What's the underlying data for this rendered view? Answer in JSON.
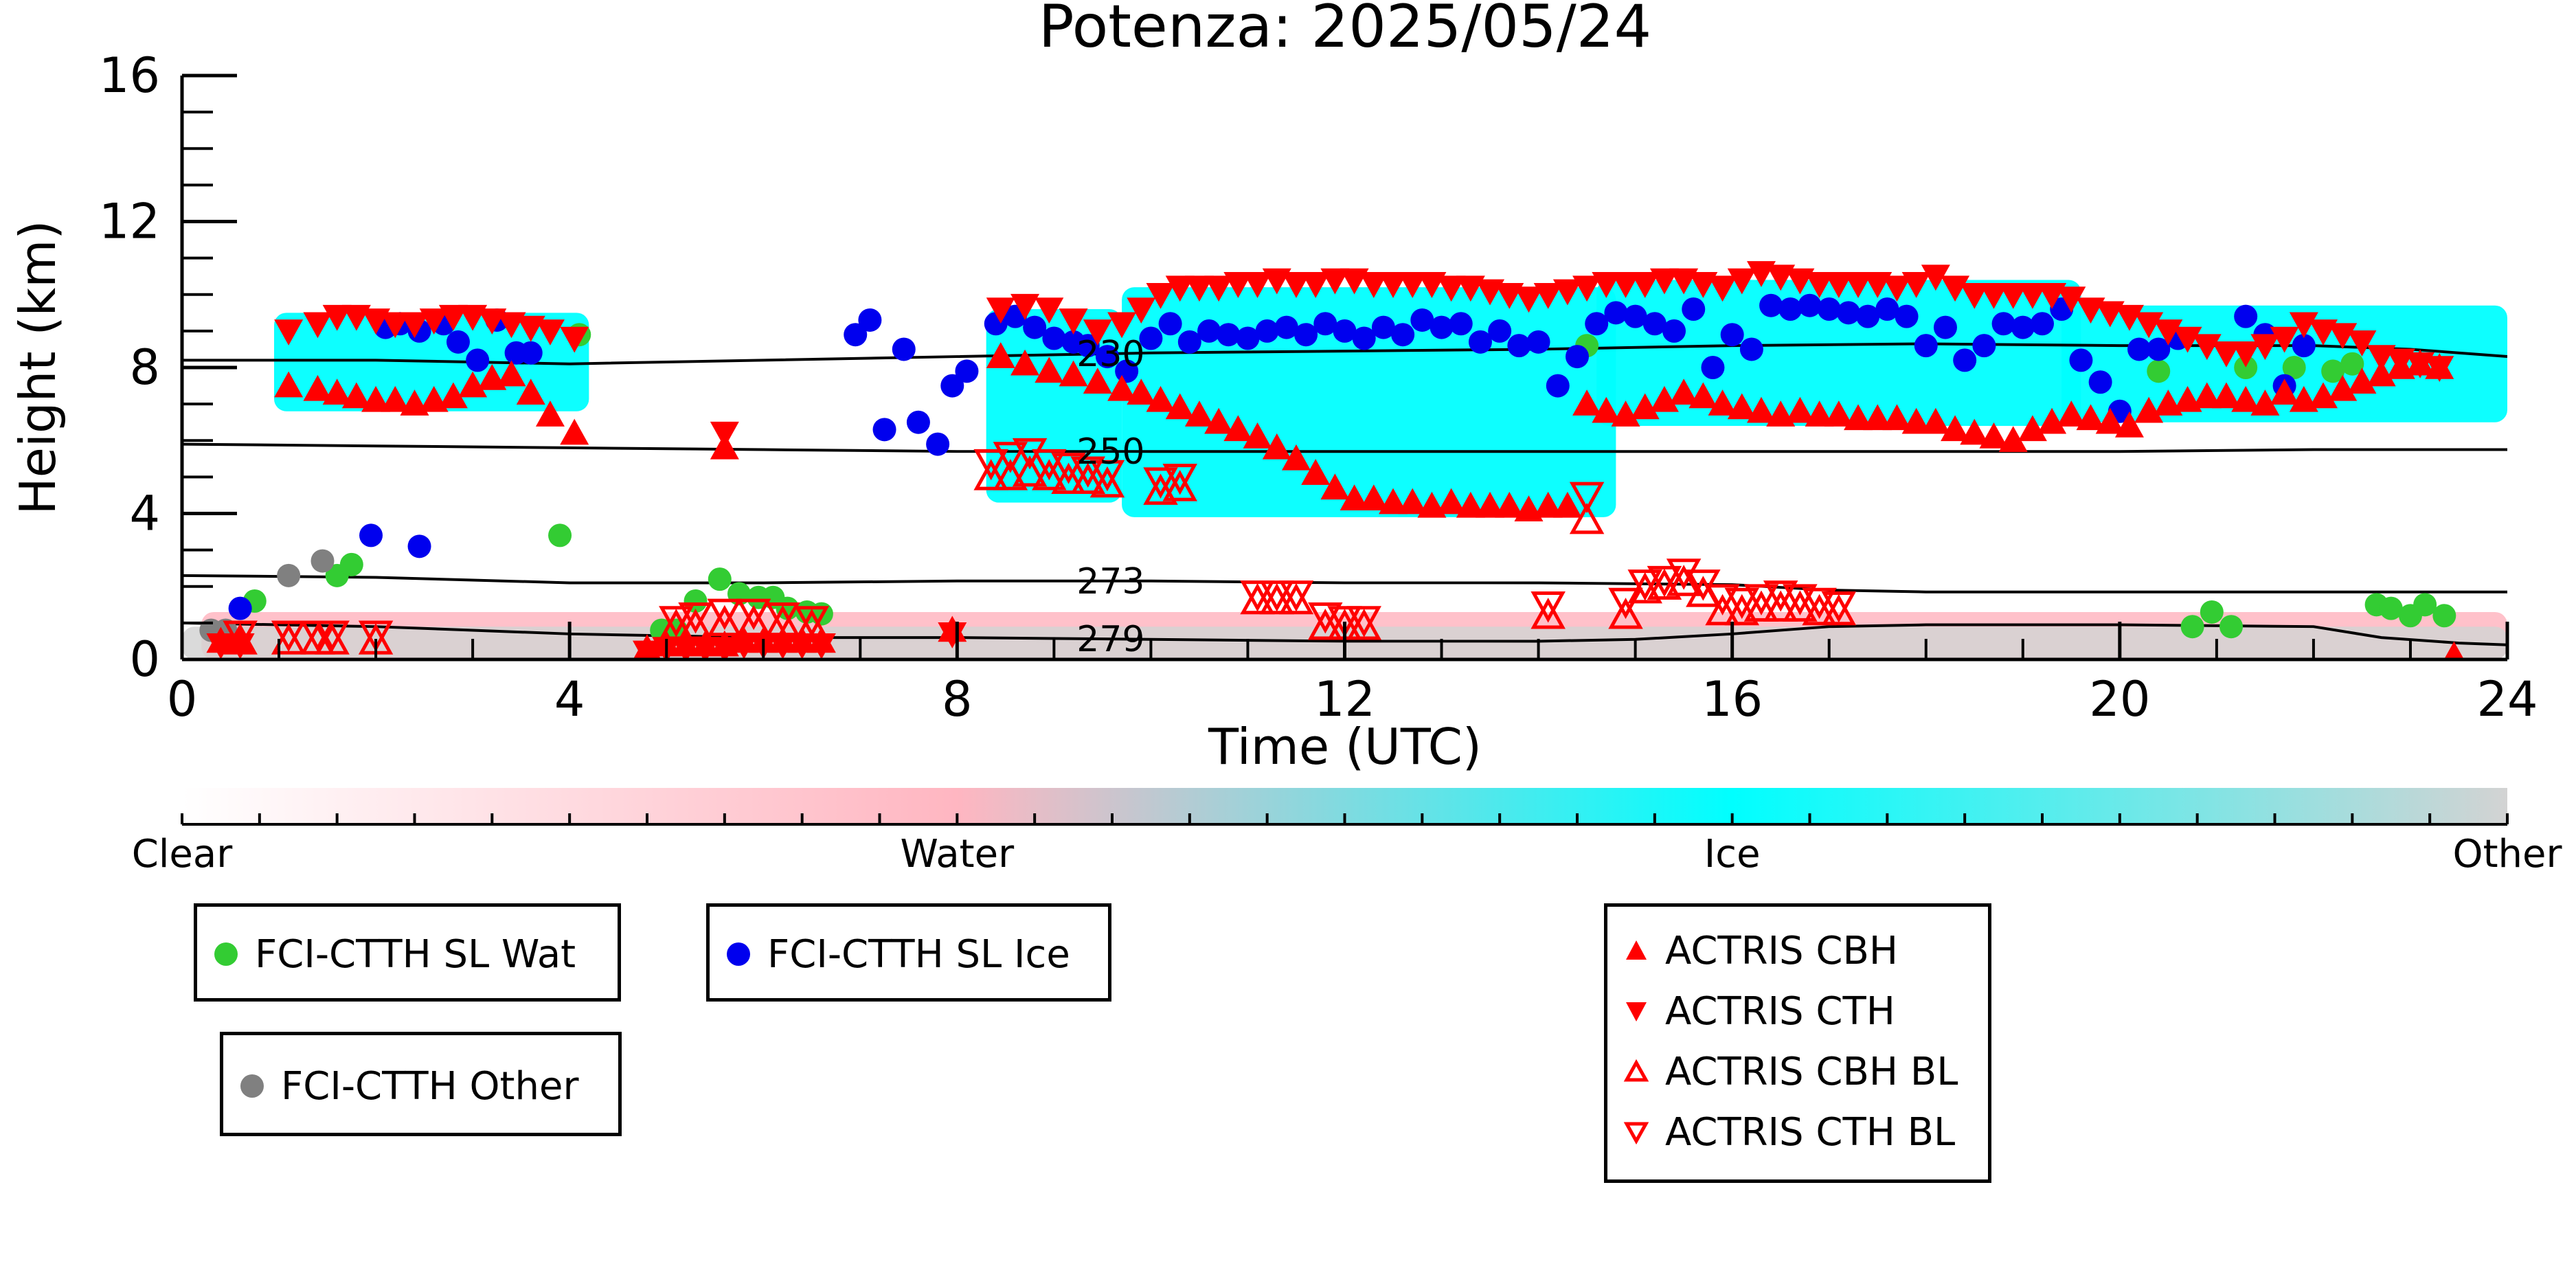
{
  "chart_data": {
    "type": "scatter",
    "title": "Potenza: 2025/05/24",
    "xlabel": "Time (UTC)",
    "ylabel": "Height (km)",
    "xlim": [
      0,
      24
    ],
    "ylim": [
      0,
      16
    ],
    "xticks": [
      0,
      4,
      8,
      12,
      16,
      20,
      24
    ],
    "yticks": [
      0,
      4,
      8,
      12,
      16
    ],
    "colorbar": {
      "labels": [
        "Clear",
        "Water",
        "Ice",
        "Other"
      ],
      "colors": [
        "#ffffff",
        "#ffb6c1",
        "#00ffff",
        "#d3d3d3"
      ]
    },
    "contours": [
      {
        "label": "230",
        "label_x": 9.5,
        "x": [
          0,
          2,
          4,
          6,
          8,
          10,
          12,
          14,
          16,
          18,
          20,
          22,
          23,
          24
        ],
        "y": [
          8.2,
          8.2,
          8.1,
          8.2,
          8.3,
          8.4,
          8.45,
          8.5,
          8.6,
          8.65,
          8.6,
          8.6,
          8.5,
          8.3
        ]
      },
      {
        "label": "250",
        "label_x": 9.5,
        "x": [
          0,
          2,
          4,
          6,
          8,
          10,
          12,
          14,
          16,
          18,
          20,
          22,
          24
        ],
        "y": [
          5.9,
          5.85,
          5.8,
          5.75,
          5.7,
          5.7,
          5.7,
          5.7,
          5.7,
          5.7,
          5.7,
          5.75,
          5.75
        ]
      },
      {
        "label": "273",
        "label_x": 9.5,
        "x": [
          0,
          2,
          4,
          6,
          8,
          10,
          12,
          14,
          16,
          17,
          18,
          20,
          22,
          24
        ],
        "y": [
          2.3,
          2.25,
          2.1,
          2.1,
          2.15,
          2.15,
          2.1,
          2.1,
          2.05,
          1.9,
          1.85,
          1.85,
          1.85,
          1.85
        ]
      },
      {
        "label": "279",
        "label_x": 9.5,
        "x": [
          0,
          2,
          4,
          5,
          6,
          8,
          10,
          12,
          14,
          15,
          16,
          17,
          18,
          20,
          22,
          22.7,
          23.5,
          24
        ],
        "y": [
          1.0,
          0.9,
          0.7,
          0.65,
          0.6,
          0.6,
          0.55,
          0.5,
          0.5,
          0.55,
          0.7,
          0.9,
          0.95,
          0.95,
          0.9,
          0.6,
          0.45,
          0.4
        ]
      }
    ],
    "cloud_phase_regions": [
      {
        "phase": "Ice",
        "x_range": [
          0.95,
          4.2
        ],
        "y_range": [
          6.8,
          9.5
        ]
      },
      {
        "phase": "Ice",
        "x_range": [
          8.3,
          9.7
        ],
        "y_range": [
          4.3,
          9.6
        ]
      },
      {
        "phase": "Ice",
        "x_range": [
          9.7,
          14.8
        ],
        "y_range": [
          3.9,
          10.2
        ]
      },
      {
        "phase": "Ice",
        "x_range": [
          14.6,
          19.6
        ],
        "y_range": [
          6.4,
          10.4
        ]
      },
      {
        "phase": "Ice",
        "x_range": [
          19.4,
          24.0
        ],
        "y_range": [
          6.5,
          9.7
        ]
      },
      {
        "phase": "Water",
        "x_range": [
          0.2,
          24.0
        ],
        "y_range": [
          0.0,
          1.3
        ]
      },
      {
        "phase": "Other",
        "x_range": [
          0.0,
          24.0
        ],
        "y_range": [
          0.0,
          0.9
        ]
      }
    ],
    "series": [
      {
        "name": "FCI-CTTH SL Wat",
        "marker": "circle",
        "color": "#33cc33",
        "x": [
          0.75,
          1.6,
          1.75,
          3.9,
          4.1,
          4.95,
          5.1,
          5.3,
          5.55,
          5.75,
          5.95,
          6.1,
          6.25,
          6.45,
          6.6,
          14.5,
          20.4,
          20.75,
          20.95,
          21.15,
          21.3,
          21.8,
          22.2,
          22.4,
          22.65,
          22.8,
          23.0,
          23.15,
          23.35
        ],
        "y": [
          1.6,
          2.3,
          2.6,
          3.4,
          8.9,
          0.8,
          0.8,
          1.6,
          2.2,
          1.8,
          1.7,
          1.7,
          1.4,
          1.3,
          1.25,
          8.6,
          7.9,
          0.9,
          1.3,
          0.9,
          8.0,
          8.0,
          7.9,
          8.1,
          1.5,
          1.4,
          1.2,
          1.5,
          1.2
        ]
      },
      {
        "name": "FCI-CTTH SL Ice",
        "marker": "circle",
        "color": "#0000ee",
        "x": [
          0.6,
          1.95,
          2.1,
          2.25,
          2.45,
          2.7,
          2.85,
          3.05,
          3.25,
          3.45,
          3.6,
          2.45,
          6.95,
          7.1,
          7.25,
          7.45,
          7.6,
          7.8,
          7.95,
          8.1,
          8.4,
          8.6,
          8.8,
          9.0,
          9.2,
          9.35,
          9.55,
          9.75,
          10.0,
          10.2,
          10.4,
          10.6,
          10.8,
          11.0,
          11.2,
          11.4,
          11.6,
          11.8,
          12.0,
          12.2,
          12.4,
          12.6,
          12.8,
          13.0,
          13.2,
          13.4,
          13.6,
          13.8,
          14.0,
          14.2,
          14.4,
          14.6,
          14.8,
          15.0,
          15.2,
          15.4,
          15.6,
          15.8,
          16.0,
          16.2,
          16.4,
          16.6,
          16.8,
          17.0,
          17.2,
          17.4,
          17.6,
          17.8,
          18.0,
          18.2,
          18.4,
          18.6,
          18.8,
          19.0,
          19.2,
          19.4,
          19.6,
          19.8,
          20.0,
          20.2,
          20.4,
          20.6,
          21.3,
          21.5,
          21.7,
          21.9
        ],
        "y": [
          1.4,
          3.4,
          9.1,
          9.2,
          9.0,
          9.2,
          8.7,
          8.2,
          9.3,
          8.4,
          8.4,
          3.1,
          8.9,
          9.3,
          6.3,
          8.5,
          6.5,
          5.9,
          7.5,
          7.9,
          9.2,
          9.4,
          9.1,
          8.8,
          8.7,
          8.6,
          8.3,
          7.9,
          8.8,
          9.2,
          8.7,
          9.0,
          8.9,
          8.8,
          9.0,
          9.1,
          8.9,
          9.2,
          9.0,
          8.8,
          9.1,
          8.9,
          9.3,
          9.1,
          9.2,
          8.7,
          9.0,
          8.6,
          8.7,
          7.5,
          8.3,
          9.2,
          9.5,
          9.4,
          9.2,
          9.0,
          9.6,
          8.0,
          8.9,
          8.5,
          9.7,
          9.6,
          9.7,
          9.6,
          9.5,
          9.4,
          9.6,
          9.4,
          8.6,
          9.1,
          8.2,
          8.6,
          9.2,
          9.1,
          9.2,
          9.6,
          8.2,
          7.6,
          6.8,
          8.5,
          8.5,
          8.8,
          9.4,
          8.9,
          7.5,
          8.6
        ]
      },
      {
        "name": "FCI-CTTH Other",
        "marker": "circle",
        "color": "#808080",
        "x": [
          0.3,
          0.45,
          1.1,
          1.45
        ],
        "y": [
          0.8,
          0.8,
          2.3,
          2.7
        ]
      },
      {
        "name": "ACTRIS CBH",
        "marker": "triangle-up",
        "color": "#ff0000",
        "x": [
          1.1,
          1.4,
          1.6,
          1.8,
          2.0,
          2.2,
          2.4,
          2.6,
          2.8,
          3.0,
          3.2,
          3.4,
          3.6,
          3.8,
          4.05,
          5.6,
          8.45,
          8.7,
          8.95,
          9.2,
          9.45,
          9.7,
          9.9,
          10.1,
          10.3,
          10.5,
          10.7,
          10.9,
          11.1,
          11.3,
          11.5,
          11.7,
          11.9,
          12.1,
          12.3,
          12.5,
          12.7,
          12.9,
          13.1,
          13.3,
          13.5,
          13.7,
          13.9,
          14.1,
          14.3,
          14.5,
          14.7,
          14.9,
          15.1,
          15.3,
          15.5,
          15.7,
          15.9,
          16.1,
          16.3,
          16.5,
          16.7,
          16.9,
          17.1,
          17.3,
          17.5,
          17.7,
          17.9,
          18.1,
          18.3,
          18.5,
          18.7,
          18.9,
          19.1,
          19.3,
          19.5,
          19.7,
          19.9,
          20.1,
          20.3,
          20.5,
          20.7,
          20.9,
          21.1,
          21.3,
          21.5,
          21.7,
          21.9,
          22.1,
          22.3,
          22.5,
          22.7,
          22.9,
          23.1,
          23.3,
          0.4,
          0.6,
          4.8,
          5.0,
          5.2,
          5.4,
          5.6,
          5.8,
          6.0,
          6.2,
          6.4,
          6.6,
          7.95,
          23.45
        ],
        "y": [
          7.5,
          7.4,
          7.3,
          7.2,
          7.1,
          7.1,
          7.0,
          7.1,
          7.2,
          7.5,
          7.7,
          7.8,
          7.3,
          6.7,
          6.2,
          5.8,
          8.3,
          8.1,
          7.9,
          7.8,
          7.6,
          7.4,
          7.3,
          7.1,
          6.9,
          6.7,
          6.5,
          6.3,
          6.1,
          5.8,
          5.5,
          5.1,
          4.7,
          4.4,
          4.4,
          4.3,
          4.3,
          4.2,
          4.3,
          4.2,
          4.2,
          4.2,
          4.1,
          4.2,
          4.2,
          7.0,
          6.8,
          6.7,
          6.9,
          7.1,
          7.3,
          7.2,
          7.0,
          6.9,
          6.8,
          6.7,
          6.8,
          6.7,
          6.7,
          6.6,
          6.6,
          6.6,
          6.5,
          6.5,
          6.3,
          6.2,
          6.1,
          6.0,
          6.3,
          6.5,
          6.7,
          6.6,
          6.5,
          6.4,
          6.8,
          7.0,
          7.1,
          7.2,
          7.2,
          7.1,
          7.0,
          7.3,
          7.1,
          7.2,
          7.4,
          7.6,
          7.8,
          8.0,
          8.1,
          8.0,
          0.5,
          0.5,
          0.3,
          0.4,
          0.4,
          0.4,
          0.4,
          0.5,
          0.5,
          0.5,
          0.5,
          0.5,
          0.8,
          0.1
        ]
      },
      {
        "name": "ACTRIS CTH",
        "marker": "triangle-down",
        "color": "#ff0000",
        "x": [
          1.1,
          1.4,
          1.6,
          1.8,
          2.0,
          2.2,
          2.4,
          2.6,
          2.8,
          3.0,
          3.2,
          3.4,
          3.6,
          3.8,
          4.05,
          5.6,
          8.45,
          8.7,
          8.95,
          9.2,
          9.45,
          9.7,
          9.9,
          10.1,
          10.3,
          10.5,
          10.7,
          10.9,
          11.1,
          11.3,
          11.5,
          11.7,
          11.9,
          12.1,
          12.3,
          12.5,
          12.7,
          12.9,
          13.1,
          13.3,
          13.5,
          13.7,
          13.9,
          14.1,
          14.3,
          14.5,
          14.7,
          14.9,
          15.1,
          15.3,
          15.5,
          15.7,
          15.9,
          16.1,
          16.3,
          16.5,
          16.7,
          16.9,
          17.1,
          17.3,
          17.5,
          17.7,
          17.9,
          18.1,
          18.3,
          18.5,
          18.7,
          18.9,
          19.1,
          19.3,
          19.5,
          19.7,
          19.9,
          20.1,
          20.3,
          20.5,
          20.7,
          20.9,
          21.1,
          21.3,
          21.5,
          21.7,
          21.9,
          22.1,
          22.3,
          22.5,
          22.7,
          22.9,
          23.1,
          23.3,
          0.4,
          0.6,
          4.8,
          5.0,
          5.2,
          5.4,
          5.6,
          5.8,
          6.0,
          6.2,
          6.4,
          6.6,
          7.95
        ],
        "y": [
          9.0,
          9.2,
          9.4,
          9.4,
          9.3,
          9.2,
          9.2,
          9.3,
          9.4,
          9.4,
          9.3,
          9.2,
          9.1,
          9.0,
          8.8,
          6.2,
          9.6,
          9.7,
          9.6,
          9.3,
          9.0,
          9.2,
          9.6,
          10.0,
          10.2,
          10.2,
          10.2,
          10.3,
          10.3,
          10.4,
          10.3,
          10.3,
          10.4,
          10.4,
          10.3,
          10.3,
          10.3,
          10.3,
          10.2,
          10.2,
          10.1,
          10.0,
          9.9,
          10.0,
          10.1,
          10.2,
          10.3,
          10.3,
          10.3,
          10.4,
          10.4,
          10.3,
          10.2,
          10.4,
          10.6,
          10.5,
          10.4,
          10.3,
          10.3,
          10.3,
          10.3,
          10.2,
          10.3,
          10.5,
          10.2,
          10.0,
          10.0,
          10.0,
          10.0,
          10.0,
          9.9,
          9.6,
          9.5,
          9.4,
          9.2,
          9.0,
          8.8,
          8.6,
          8.4,
          8.4,
          8.6,
          8.8,
          9.2,
          9.0,
          8.9,
          8.7,
          8.3,
          8.2,
          8.1,
          8.0,
          0.4,
          0.4,
          0.2,
          0.3,
          0.3,
          0.3,
          0.3,
          0.4,
          0.4,
          0.4,
          0.4,
          0.4,
          0.7
        ]
      },
      {
        "name": "ACTRIS CBH BL",
        "marker": "triangle-up-open",
        "color": "#ff0000",
        "x": [
          0.6,
          1.1,
          1.4,
          1.55,
          2.0,
          5.1,
          5.3,
          5.6,
          5.9,
          6.2,
          6.5,
          8.35,
          8.55,
          8.75,
          8.95,
          9.15,
          9.35,
          9.55,
          10.1,
          10.3,
          11.1,
          11.3,
          11.5,
          11.8,
          12.0,
          12.2,
          14.1,
          14.5,
          14.9,
          15.1,
          15.3,
          15.5,
          15.7,
          15.9,
          16.1,
          16.3,
          16.5,
          16.7,
          16.9,
          17.1
        ],
        "y": [
          0.5,
          0.5,
          0.5,
          0.5,
          0.5,
          0.9,
          0.9,
          1.0,
          1.0,
          1.0,
          0.9,
          5.0,
          5.0,
          5.1,
          5.0,
          4.9,
          4.9,
          4.8,
          4.6,
          4.7,
          1.6,
          1.6,
          1.6,
          0.9,
          0.9,
          0.9,
          1.2,
          3.8,
          1.2,
          1.9,
          2.0,
          2.1,
          1.8,
          1.3,
          1.3,
          1.4,
          1.4,
          1.4,
          1.3,
          1.3
        ]
      },
      {
        "name": "ACTRIS CTH BL",
        "marker": "triangle-down-open",
        "color": "#ff0000",
        "x": [
          0.6,
          1.1,
          1.4,
          1.55,
          2.0,
          5.1,
          5.3,
          5.6,
          5.9,
          6.2,
          6.5,
          8.35,
          8.55,
          8.75,
          8.95,
          9.15,
          9.35,
          9.55,
          10.1,
          10.3,
          11.1,
          11.3,
          11.5,
          11.8,
          12.0,
          12.2,
          14.1,
          14.5,
          14.9,
          15.1,
          15.3,
          15.5,
          15.7,
          15.9,
          16.1,
          16.3,
          16.5,
          16.7,
          16.9,
          17.1
        ],
        "y": [
          0.7,
          0.7,
          0.7,
          0.7,
          0.7,
          1.1,
          1.2,
          1.3,
          1.3,
          1.2,
          1.1,
          5.4,
          5.6,
          5.7,
          5.4,
          5.3,
          5.2,
          5.1,
          4.9,
          5.0,
          1.8,
          1.8,
          1.8,
          1.2,
          1.1,
          1.1,
          1.5,
          4.5,
          1.6,
          2.1,
          2.2,
          2.4,
          2.1,
          1.7,
          1.6,
          1.7,
          1.8,
          1.7,
          1.6,
          1.5
        ]
      }
    ],
    "legends": [
      {
        "entries": [
          "FCI-CTTH SL Wat"
        ]
      },
      {
        "entries": [
          "FCI-CTTH SL Ice"
        ]
      },
      {
        "entries": [
          "FCI-CTTH Other"
        ]
      },
      {
        "entries": [
          "ACTRIS CBH",
          "ACTRIS CTH",
          "ACTRIS CBH BL",
          "ACTRIS CTH BL"
        ]
      }
    ]
  }
}
